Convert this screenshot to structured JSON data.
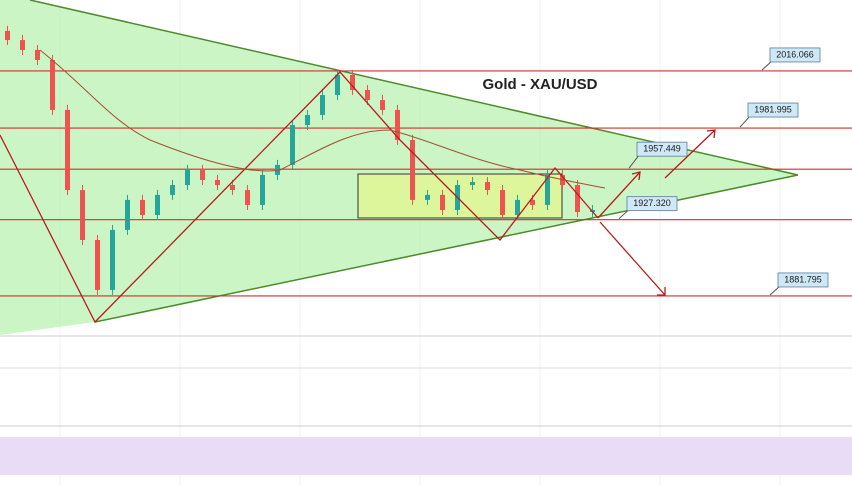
{
  "chart_data": {
    "type": "candlestick",
    "title": "Gold - XAU/USD",
    "ylim": [
      1858.5,
      2058.4
    ],
    "open": [
      2040.0,
      2034.5,
      2028.6,
      2022.6,
      1992.8,
      1945.0,
      1915.2,
      1885.4,
      1921.2,
      1939.1,
      1930.1,
      1942.1,
      1948.0,
      1957.0,
      1951.0,
      1948.0,
      1945.0,
      1936.1,
      1954.0,
      1960.0,
      1983.8,
      1989.8,
      2001.7,
      2013.7,
      2004.7,
      1998.7,
      1992.8,
      1974.9,
      1939.1,
      1942.1,
      1933.1,
      1948.0,
      1949.8,
      1945.0,
      1930.1,
      1939.1,
      1936.1,
      1954.0,
      1948.0,
      1931.9
    ],
    "close": [
      2034.5,
      2028.6,
      2022.6,
      1992.8,
      1945.0,
      1915.2,
      1885.4,
      1921.2,
      1939.1,
      1930.1,
      1942.1,
      1948.0,
      1957.0,
      1951.0,
      1948.0,
      1945.0,
      1936.1,
      1954.0,
      1960.0,
      1983.8,
      1989.8,
      2001.7,
      2013.7,
      2004.7,
      1998.7,
      1992.8,
      1974.9,
      1939.1,
      1942.1,
      1933.1,
      1948.0,
      1949.8,
      1945.0,
      1930.1,
      1939.1,
      1936.1,
      1954.0,
      1948.0,
      1931.9,
      1933.1
    ],
    "up_color": "#26a69a",
    "down_color": "#ef5350",
    "level_color": "#d32f2f",
    "levels": [
      2016.066,
      1981.995,
      1957.449,
      {
        "value": 1927.32,
        "label": "1927.320"
      },
      1881.795
    ]
  }
}
